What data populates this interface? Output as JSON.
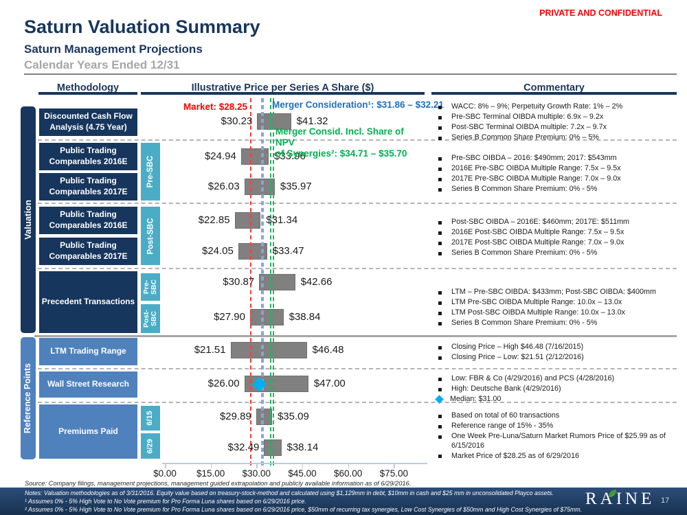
{
  "header": {
    "confidential": "PRIVATE AND CONFIDENTIAL",
    "title": "Saturn Valuation Summary",
    "subtitle": "Saturn Management Projections",
    "subtitle2": "Calendar Years Ended 12/31"
  },
  "columns": {
    "methodology": "Methodology",
    "chart": "Illustrative Price per Series A Share ($)",
    "commentary": "Commentary"
  },
  "sections": [
    {
      "label": "Valuation"
    },
    {
      "label": "Reference Points"
    }
  ],
  "methodology": {
    "boxes": [
      "Discounted Cash Flow Analysis (4.75 Year)",
      "Public Trading Comparables 2016E",
      "Public Trading Comparables 2017E",
      "Public Trading Comparables 2016E",
      "Public Trading Comparables 2017E",
      "Precedent Transactions",
      "LTM Trading Range",
      "Wall Street Research",
      "Premiums Paid"
    ],
    "sub_labels": [
      "Pre-SBC",
      "Post-SBC",
      "Pre-SBC",
      "Post-SBC",
      "6/15",
      "6/29"
    ]
  },
  "chart_data": {
    "type": "bar",
    "subtype": "horizontal-range-football-field",
    "title": "Illustrative Price per Series A Share ($)",
    "xlim": [
      0,
      75
    ],
    "x_ticks": [
      0,
      15,
      30,
      45,
      60,
      75
    ],
    "x_tick_labels": [
      "$0.00",
      "$15.00",
      "$30.00",
      "$45.00",
      "$60.00",
      "$75.00"
    ],
    "bar_color": "#808080",
    "rows": [
      {
        "methodology": "Discounted Cash Flow Analysis (4.75 Year)",
        "group": "Valuation",
        "sub": null,
        "low": 30.23,
        "high": 41.32
      },
      {
        "methodology": "Public Trading Comparables 2016E",
        "group": "Valuation",
        "sub": "Pre-SBC",
        "low": 24.94,
        "high": 33.96
      },
      {
        "methodology": "Public Trading Comparables 2017E",
        "group": "Valuation",
        "sub": "Pre-SBC",
        "low": 26.03,
        "high": 35.97
      },
      {
        "methodology": "Public Trading Comparables 2016E",
        "group": "Valuation",
        "sub": "Post-SBC",
        "low": 22.85,
        "high": 31.34
      },
      {
        "methodology": "Public Trading Comparables 2017E",
        "group": "Valuation",
        "sub": "Post-SBC",
        "low": 24.05,
        "high": 33.47
      },
      {
        "methodology": "Precedent Transactions",
        "group": "Valuation",
        "sub": "Pre-SBC",
        "low": 30.87,
        "high": 42.66
      },
      {
        "methodology": "Precedent Transactions",
        "group": "Valuation",
        "sub": "Post-SBC",
        "low": 27.9,
        "high": 38.84
      },
      {
        "methodology": "LTM Trading Range",
        "group": "Reference Points",
        "sub": null,
        "low": 21.51,
        "high": 46.48
      },
      {
        "methodology": "Wall Street Research",
        "group": "Reference Points",
        "sub": null,
        "low": 26.0,
        "high": 47.0,
        "median_marker": 31.0
      },
      {
        "methodology": "Premiums Paid",
        "group": "Reference Points",
        "sub": "6/15",
        "low": 29.89,
        "high": 35.09
      },
      {
        "methodology": "Premiums Paid",
        "group": "Reference Points",
        "sub": "6/29",
        "low": 32.49,
        "high": 38.14
      }
    ],
    "reference_lines": [
      {
        "id": "market",
        "label": "Market: $28.25",
        "values": [
          28.25
        ],
        "line_color": "#ff3b3b",
        "label_color": "#ff0000"
      },
      {
        "id": "merger-consideration",
        "label": "Merger Consideration¹: $31.86 – $32.21",
        "values": [
          31.86,
          32.21
        ],
        "line_color": "#8aa4d6",
        "label_color": "#1f6fc0"
      },
      {
        "id": "merger-synergies",
        "label": "Merger Consid. Incl. Share of NPV\nof Synergies²: $34.71 – $35.70",
        "values": [
          34.71,
          35.7
        ],
        "line_color": "#1fb45c",
        "label_color": "#00b050"
      }
    ]
  },
  "commentary": {
    "groups": [
      {
        "items": [
          {
            "text": "WACC: 8% – 9%; Perpetuity Growth Rate: 1% – 2%"
          },
          {
            "text": "Pre-SBC Terminal OIBDA multiple: 6.9x – 9.2x"
          },
          {
            "text": "Post-SBC Terminal OIBDA multiple: 7.2x – 9.7x"
          },
          {
            "text": "Series B Common Share Premium: 0% – 5%"
          }
        ]
      },
      {
        "items": [
          {
            "text": "Pre-SBC OIBDA – 2016: $490mm; 2017: $543mm"
          },
          {
            "text": "2016E Pre-SBC OIBDA Multiple Range: 7.5x – 9.5x"
          },
          {
            "text": "2017E Pre-SBC OIBDA Multiple Range: 7.0x – 9.0x"
          },
          {
            "text": "Series B Common Share Premium: 0% - 5%"
          }
        ]
      },
      {
        "items": [
          {
            "text": "Post-SBC OIBDA – 2016E: $460mm; 2017E: $511mm"
          },
          {
            "text": "2016E Post-SBC OIBDA Multiple Range: 7.5x – 9.5x"
          },
          {
            "text": "2017E Post-SBC OIBDA Multiple Range: 7.0x – 9.0x"
          },
          {
            "text": "Series B Common Share Premium: 0% - 5%"
          }
        ]
      },
      {
        "items": [
          {
            "text": "LTM – Pre-SBC OIBDA: $433mm; Post-SBC OIBDA: $400mm"
          },
          {
            "text": "LTM Pre-SBC OIBDA Multiple Range: 10.0x – 13.0x"
          },
          {
            "text": "LTM Post-SBC OIBDA Multiple Range: 10.0x – 13.0x"
          },
          {
            "text": "Series B Common Share Premium: 0% - 5%"
          }
        ]
      },
      {
        "items": [
          {
            "text": "Closing Price – High $46.48 (7/16/2015)"
          },
          {
            "text": "Closing Price – Low: $21.51 (2/12/2016)"
          }
        ]
      },
      {
        "items": [
          {
            "text": "Low: FBR & Co (4/29/2016) and PCS (4/28/2016)"
          },
          {
            "text": "High: Deutsche Bank (4/29/2016)"
          },
          {
            "text": "Median: $31.00",
            "bullet": "diamond"
          }
        ]
      },
      {
        "items": [
          {
            "text": "Based on total of 60 transactions"
          },
          {
            "text": "Reference range of 15% - 35%"
          },
          {
            "text": "One Week Pre-Luna/Saturn Market Rumors Price of $25.99 as of 6/15/2016"
          },
          {
            "text": "Market Price of $28.25 as of 6/29/2016"
          }
        ]
      }
    ]
  },
  "footer": {
    "source": "Source: Company filings, management projections, management guided extrapolation and publicly available information as of 6/29/2016.",
    "notes": "Notes: Valuation methodologies as of 3/31/2016.  Equity value based on treasury-stock-method and calculated using $1,129mm in debt, $10mm in cash and $25 mm in unconsolidated Playco assets.",
    "footnote1": "¹ Assumes 0% - 5% High Vote to No Vote premium for Pro Forma Luna shares based on 6/29/2016 price.",
    "footnote2": "² Assumes 0% - 5% High Vote to No Vote premium for Pro Forma Luna shares based on 6/29/2016 price, $50mm of recurring tax synergies, Low Cost Synergies of $50mm and High Cost Synergies of $75mm.",
    "logo": "RAINE",
    "page": "17"
  },
  "colors": {
    "navy": "#17365d",
    "blue": "#4f81bd",
    "teal": "#4bacc6",
    "bar": "#808080",
    "median_diamond": "#00b0f0",
    "gray_subtitle": "#a6a6a6"
  }
}
